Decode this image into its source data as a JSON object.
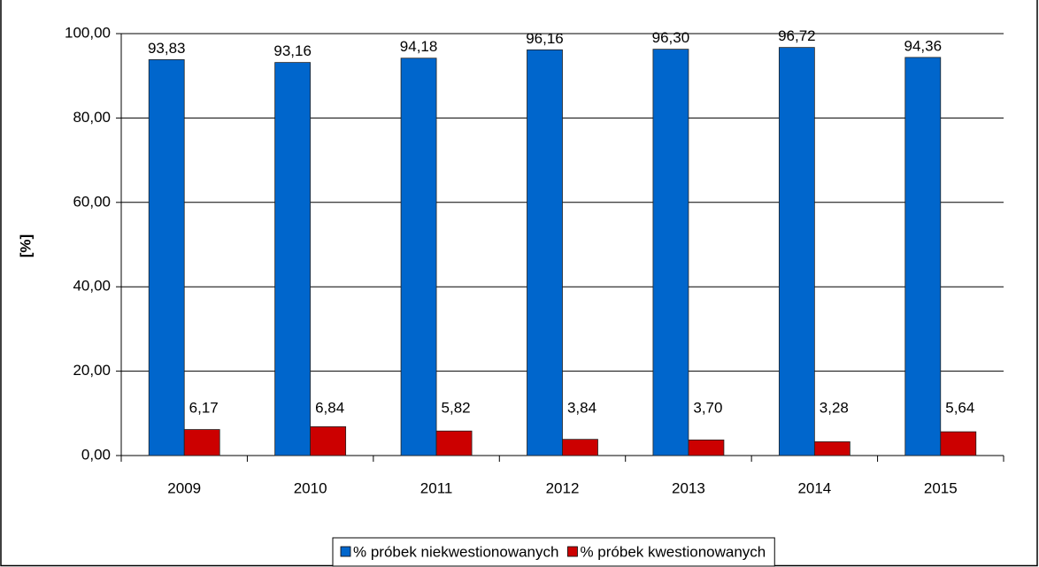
{
  "chart_data": {
    "type": "bar",
    "y_label": "[%]",
    "categories": [
      "2009",
      "2010",
      "2011",
      "2012",
      "2013",
      "2014",
      "2015"
    ],
    "series": [
      {
        "name": "% próbek niekwestionowanych",
        "color": "#0066cc",
        "values": [
          93.83,
          93.16,
          94.18,
          96.16,
          96.3,
          96.72,
          94.36
        ],
        "value_labels": [
          "93,83",
          "93,16",
          "94,18",
          "96,16",
          "96,30",
          "96,72",
          "94,36"
        ]
      },
      {
        "name": "% próbek kwestionowanych",
        "color": "#cc0000",
        "values": [
          6.17,
          6.84,
          5.82,
          3.84,
          3.7,
          3.28,
          5.64
        ],
        "value_labels": [
          "6,17",
          "6,84",
          "5,82",
          "3,84",
          "3,70",
          "3,28",
          "5,64"
        ]
      }
    ],
    "ylim": [
      0,
      100
    ],
    "yticks": [
      {
        "value": 0,
        "label": "0,00"
      },
      {
        "value": 20,
        "label": "20,00"
      },
      {
        "value": 40,
        "label": "40,00"
      },
      {
        "value": 60,
        "label": "60,00"
      },
      {
        "value": 80,
        "label": "80,00"
      },
      {
        "value": 100,
        "label": "100,00"
      }
    ],
    "grid": true,
    "legend": "bottom"
  }
}
